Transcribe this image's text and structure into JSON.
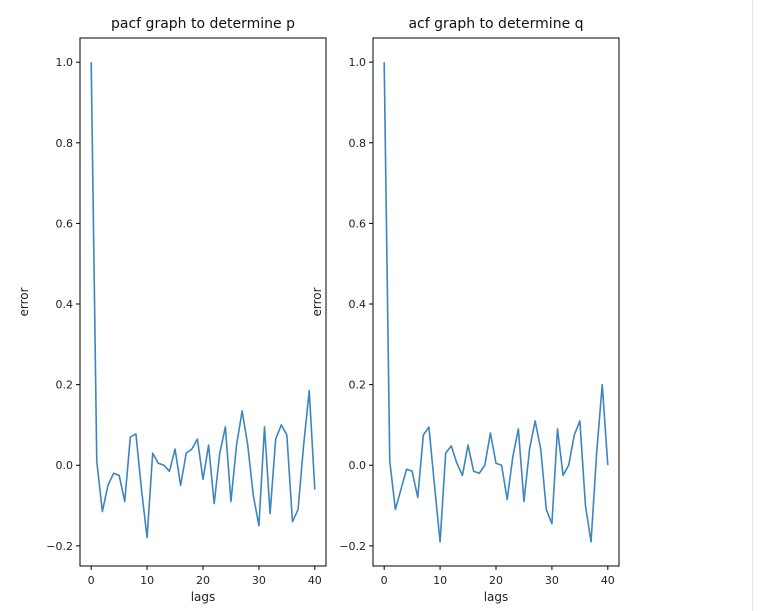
{
  "chart_data": [
    {
      "type": "line",
      "title": "pacf graph to determine p",
      "xlabel": "lags",
      "ylabel": "error",
      "xlim": [
        -2,
        42
      ],
      "ylim": [
        -0.25,
        1.06
      ],
      "xticks": [
        "0",
        "10",
        "20",
        "30",
        "40"
      ],
      "yticks": [
        "1.0",
        "0.8",
        "0.6",
        "0.4",
        "0.2",
        "0.0",
        "−0.2"
      ],
      "color": "#3b86c0",
      "grid": false,
      "series": [
        {
          "x": [
            0,
            1,
            2,
            3,
            4,
            5,
            6,
            7,
            8,
            9,
            10,
            11,
            12,
            13,
            14,
            15,
            16,
            17,
            18,
            19,
            20,
            21,
            22,
            23,
            24,
            25,
            26,
            27,
            28,
            29,
            30,
            31,
            32,
            33,
            34,
            35,
            36,
            37,
            38,
            39,
            40
          ],
          "values": [
            1.0,
            0.01,
            -0.115,
            -0.05,
            -0.02,
            -0.025,
            -0.09,
            0.07,
            0.078,
            -0.06,
            -0.18,
            0.03,
            0.005,
            0.0,
            -0.015,
            0.04,
            -0.05,
            0.03,
            0.04,
            0.065,
            -0.035,
            0.05,
            -0.095,
            0.03,
            0.095,
            -0.09,
            0.05,
            0.135,
            0.05,
            -0.075,
            -0.15,
            0.095,
            -0.12,
            0.065,
            0.1,
            0.075,
            -0.14,
            -0.11,
            0.05,
            0.185,
            -0.06
          ]
        }
      ]
    },
    {
      "type": "line",
      "title": "acf graph to determine q",
      "xlabel": "lags",
      "ylabel": "error",
      "xlim": [
        -2,
        42
      ],
      "ylim": [
        -0.25,
        1.06
      ],
      "xticks": [
        "0",
        "10",
        "20",
        "30",
        "40"
      ],
      "yticks": [
        "1.0",
        "0.8",
        "0.6",
        "0.4",
        "0.2",
        "0.0",
        "−0.2"
      ],
      "color": "#3b86c0",
      "grid": false,
      "series": [
        {
          "x": [
            0,
            1,
            2,
            3,
            4,
            5,
            6,
            7,
            8,
            9,
            10,
            11,
            12,
            13,
            14,
            15,
            16,
            17,
            18,
            19,
            20,
            21,
            22,
            23,
            24,
            25,
            26,
            27,
            28,
            29,
            30,
            31,
            32,
            33,
            34,
            35,
            36,
            37,
            38,
            39,
            40
          ],
          "values": [
            1.0,
            0.01,
            -0.11,
            -0.06,
            -0.01,
            -0.015,
            -0.08,
            0.075,
            0.095,
            -0.05,
            -0.19,
            0.03,
            0.048,
            0.005,
            -0.025,
            0.05,
            -0.015,
            -0.02,
            0.0,
            0.08,
            0.005,
            0.0,
            -0.085,
            0.02,
            0.09,
            -0.09,
            0.04,
            0.11,
            0.04,
            -0.11,
            -0.145,
            0.09,
            -0.025,
            0.0,
            0.075,
            0.11,
            -0.1,
            -0.19,
            0.03,
            0.2,
            0.0
          ]
        }
      ]
    }
  ]
}
